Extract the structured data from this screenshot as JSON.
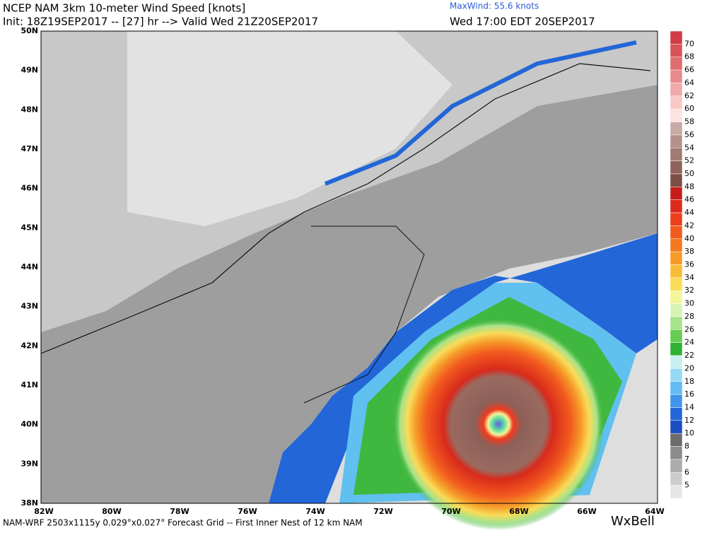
{
  "header": {
    "title": "NCEP NAM 3km 10-meter Wind Speed [knots]",
    "init": "Init: 18Z19SEP2017 -- [27] hr --> Valid Wed 21Z20SEP2017",
    "maxwind": "MaxWind: 55.6 knots",
    "valid": "Wed 17:00 EDT 20SEP2017"
  },
  "colorbar": {
    "labels": [
      "70",
      "68",
      "66",
      "64",
      "62",
      "60",
      "58",
      "56",
      "54",
      "52",
      "50",
      "48",
      "46",
      "44",
      "42",
      "40",
      "38",
      "36",
      "34",
      "32",
      "30",
      "28",
      "26",
      "24",
      "22",
      "20",
      "18",
      "16",
      "14",
      "12",
      "10",
      "8",
      "7",
      "6",
      "5"
    ],
    "colors": [
      "#d23a44",
      "#d95258",
      "#e16c70",
      "#e98a8c",
      "#f0a8a8",
      "#f8c8c6",
      "#fce2e0",
      "#c6aaa4",
      "#b4928a",
      "#a27a72",
      "#8e625a",
      "#7c4e46",
      "#c81c1c",
      "#dc2a1c",
      "#ee3e1e",
      "#f25a1e",
      "#f47a20",
      "#f69a28",
      "#f8bc38",
      "#f8dc58",
      "#f4f49a",
      "#d8f2b4",
      "#a8e28a",
      "#66cc54",
      "#30b034",
      "#c8f0f0",
      "#94daf2",
      "#64bcf2",
      "#4094ea",
      "#2266d8",
      "#1a4cc2",
      "#6c6c6c",
      "#8c8c8c",
      "#acacac",
      "#cccccc",
      "#e6e6e6"
    ]
  },
  "lat_labels": [
    "50N",
    "49N",
    "48N",
    "47N",
    "46N",
    "45N",
    "44N",
    "43N",
    "42N",
    "41N",
    "40N",
    "39N",
    "38N"
  ],
  "lon_labels": [
    "82W",
    "80W",
    "78W",
    "76W",
    "74W",
    "72W",
    "70W",
    "68W",
    "66W",
    "64W"
  ],
  "footer": "NAM-WRF 2503x1115y 0.029°x0.027° Forecast Grid -- First Inner Nest of 12 km NAM",
  "logo": "WxBell"
}
